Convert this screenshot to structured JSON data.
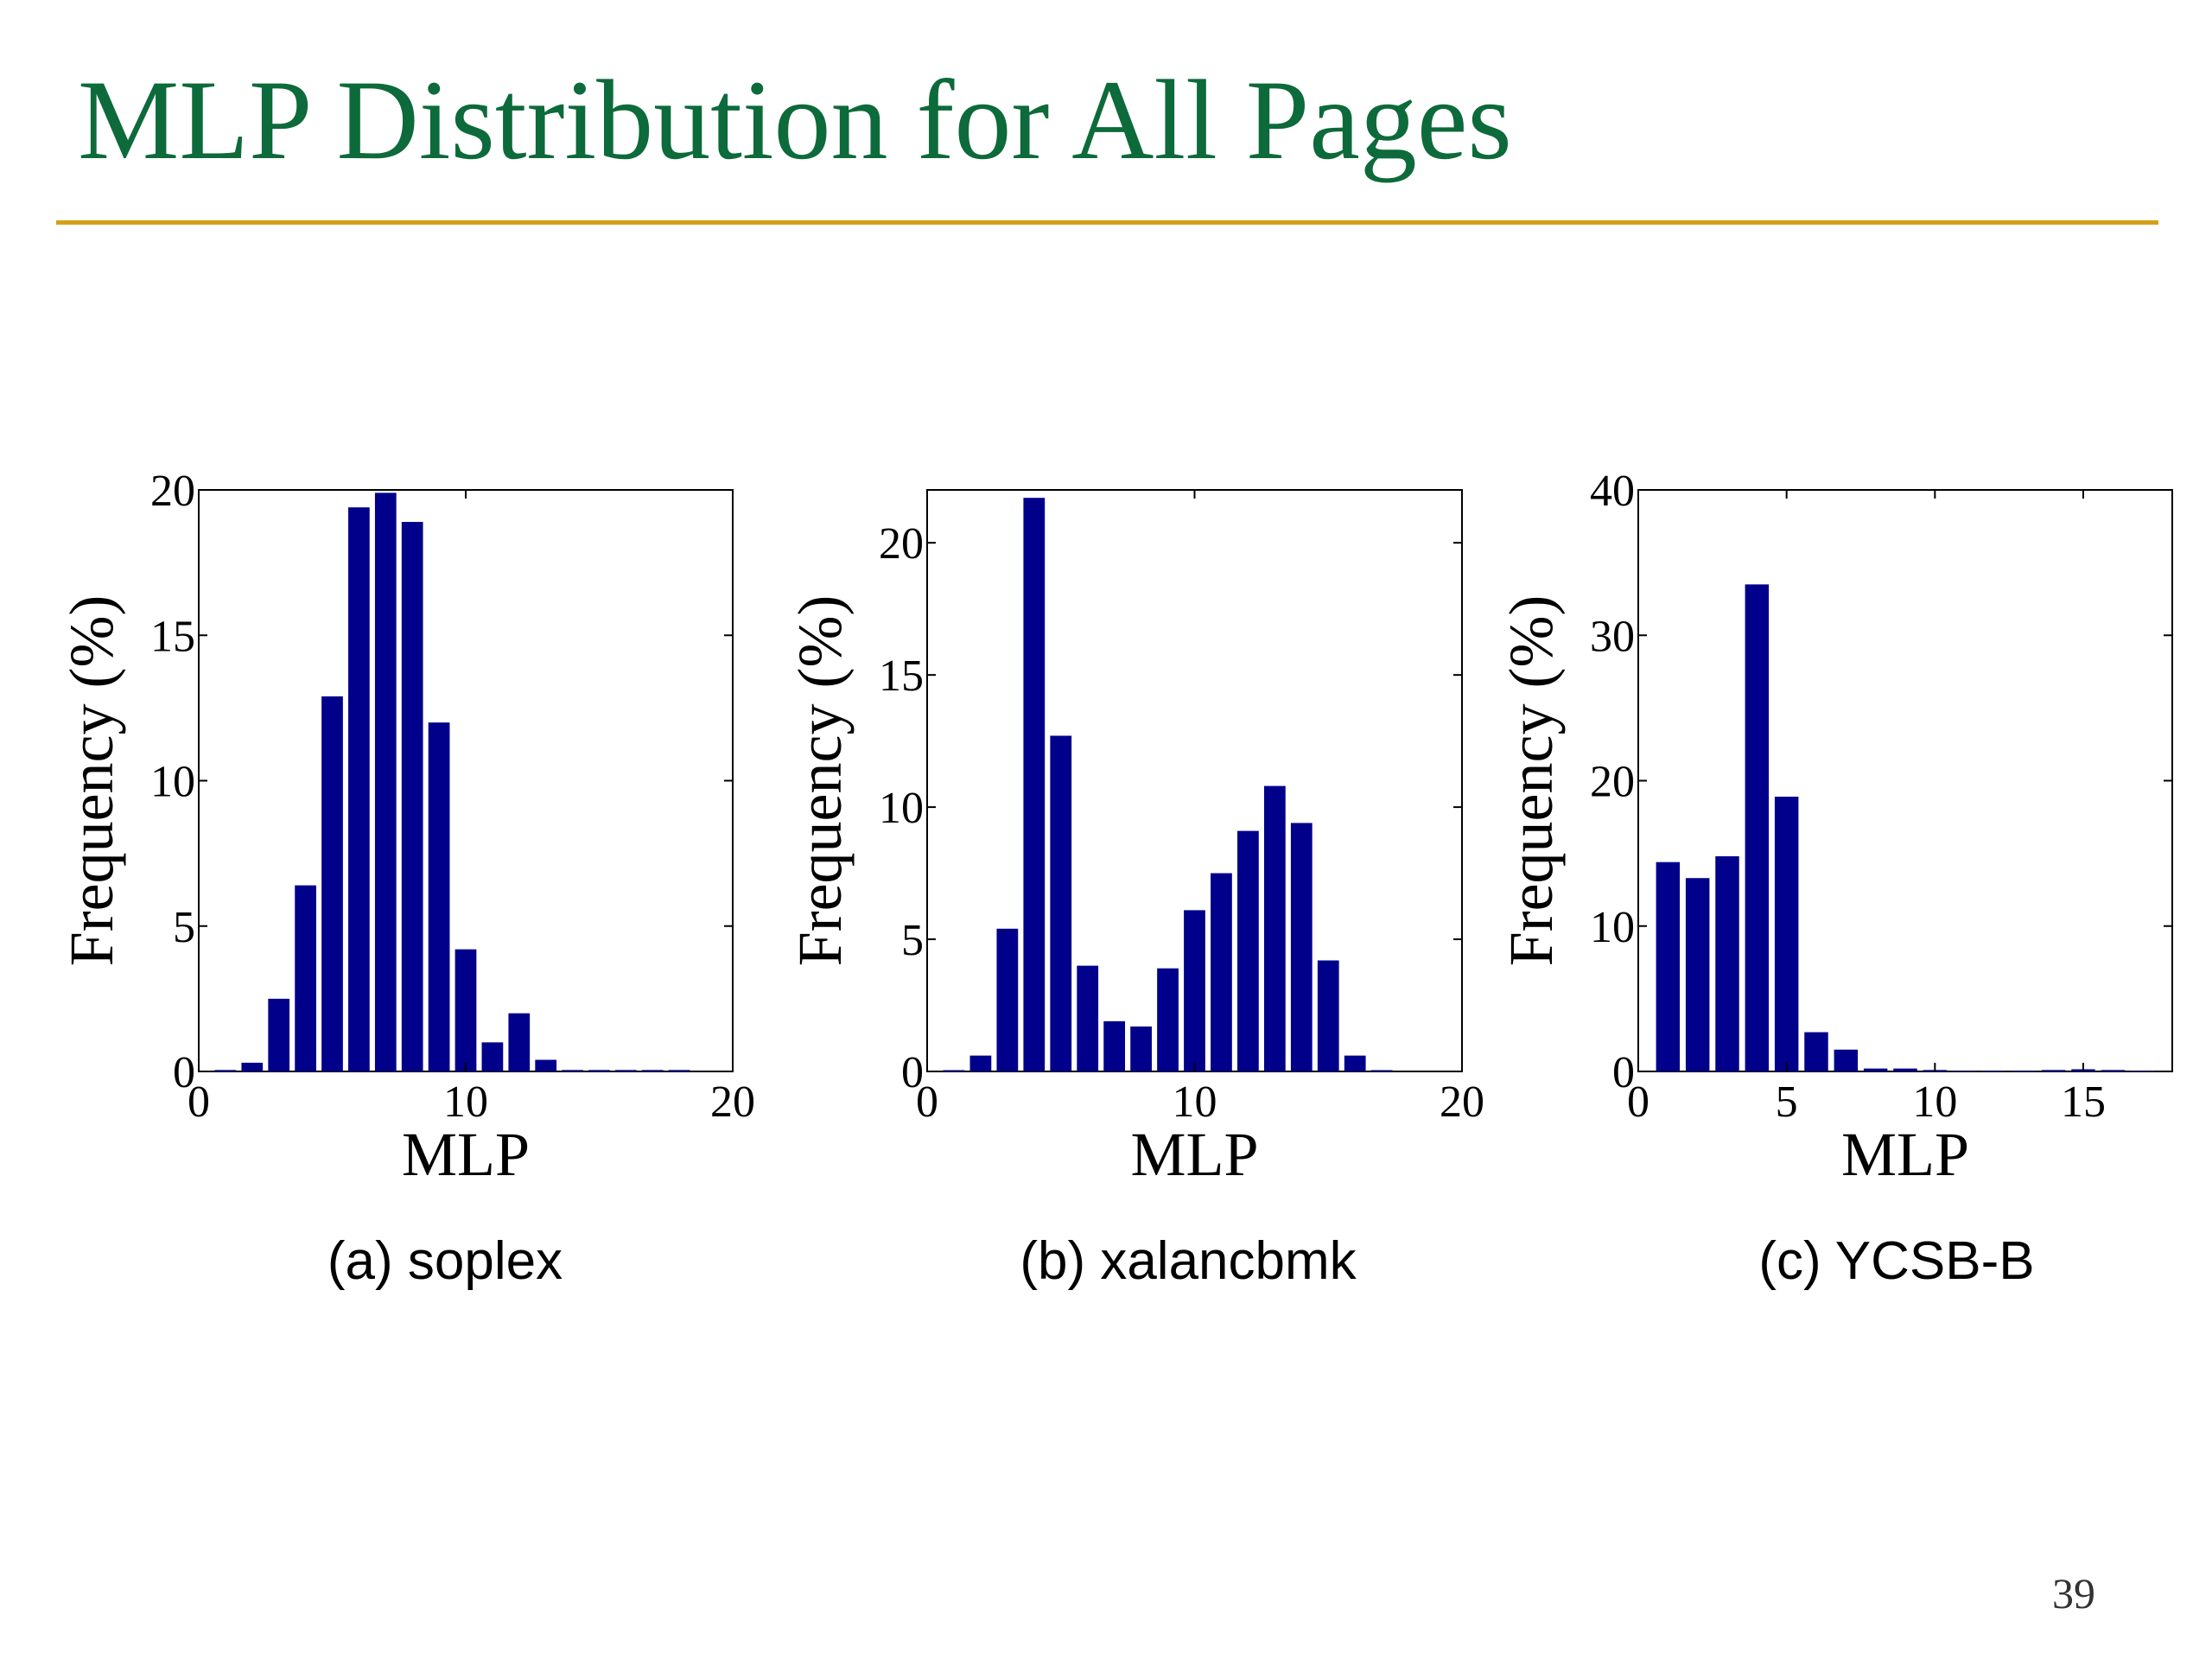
{
  "slide": {
    "title": "MLP Distribution for All Pages",
    "page_number": "39",
    "accent_color": "#0d6a3a",
    "rule_color": "#d4a017"
  },
  "chart_data": [
    {
      "type": "bar",
      "caption": "(a) soplex",
      "xlabel": "MLP",
      "ylabel": "Frequency (%)",
      "xlim": [
        0,
        20
      ],
      "ylim": [
        0,
        20
      ],
      "xticks": [
        0,
        10,
        20
      ],
      "yticks": [
        0,
        5,
        10,
        15,
        20
      ],
      "bar_color": "#00008b",
      "x": [
        1,
        2,
        3,
        4,
        5,
        6,
        7,
        8,
        9,
        10,
        11,
        12,
        13,
        14,
        15,
        16,
        17,
        18
      ],
      "values": [
        0.05,
        0.3,
        2.5,
        6.4,
        12.9,
        19.4,
        19.9,
        18.9,
        12.0,
        4.2,
        1.0,
        2.0,
        0.4,
        0.05,
        0.05,
        0.05,
        0.05,
        0.05
      ]
    },
    {
      "type": "bar",
      "caption": "(b) xalancbmk",
      "xlabel": "MLP",
      "ylabel": "Frequency (%)",
      "xlim": [
        0,
        20
      ],
      "ylim": [
        0,
        22
      ],
      "xticks": [
        0,
        10,
        20
      ],
      "yticks": [
        0,
        5,
        10,
        15,
        20
      ],
      "bar_color": "#00008b",
      "x": [
        1,
        2,
        3,
        4,
        5,
        6,
        7,
        8,
        9,
        10,
        11,
        12,
        13,
        14,
        15,
        16,
        17
      ],
      "values": [
        0.05,
        0.6,
        5.4,
        21.7,
        12.7,
        4.0,
        1.9,
        1.7,
        3.9,
        6.1,
        7.5,
        9.1,
        10.8,
        9.4,
        4.2,
        0.6,
        0.05
      ]
    },
    {
      "type": "bar",
      "caption": "(c) YCSB-B",
      "xlabel": "MLP",
      "ylabel": "Frequency (%)",
      "xlim": [
        0,
        18
      ],
      "ylim": [
        0,
        40
      ],
      "xticks": [
        0,
        5,
        10,
        15
      ],
      "yticks": [
        0,
        10,
        20,
        30,
        40
      ],
      "bar_color": "#00008b",
      "x": [
        1,
        2,
        3,
        4,
        5,
        6,
        7,
        8,
        9,
        10,
        11,
        12,
        13,
        14,
        15,
        16,
        17
      ],
      "values": [
        14.4,
        13.3,
        14.8,
        33.5,
        18.9,
        2.7,
        1.5,
        0.2,
        0.2,
        0.1,
        0.05,
        0.05,
        0.05,
        0.1,
        0.15,
        0.1,
        0.05
      ]
    }
  ]
}
